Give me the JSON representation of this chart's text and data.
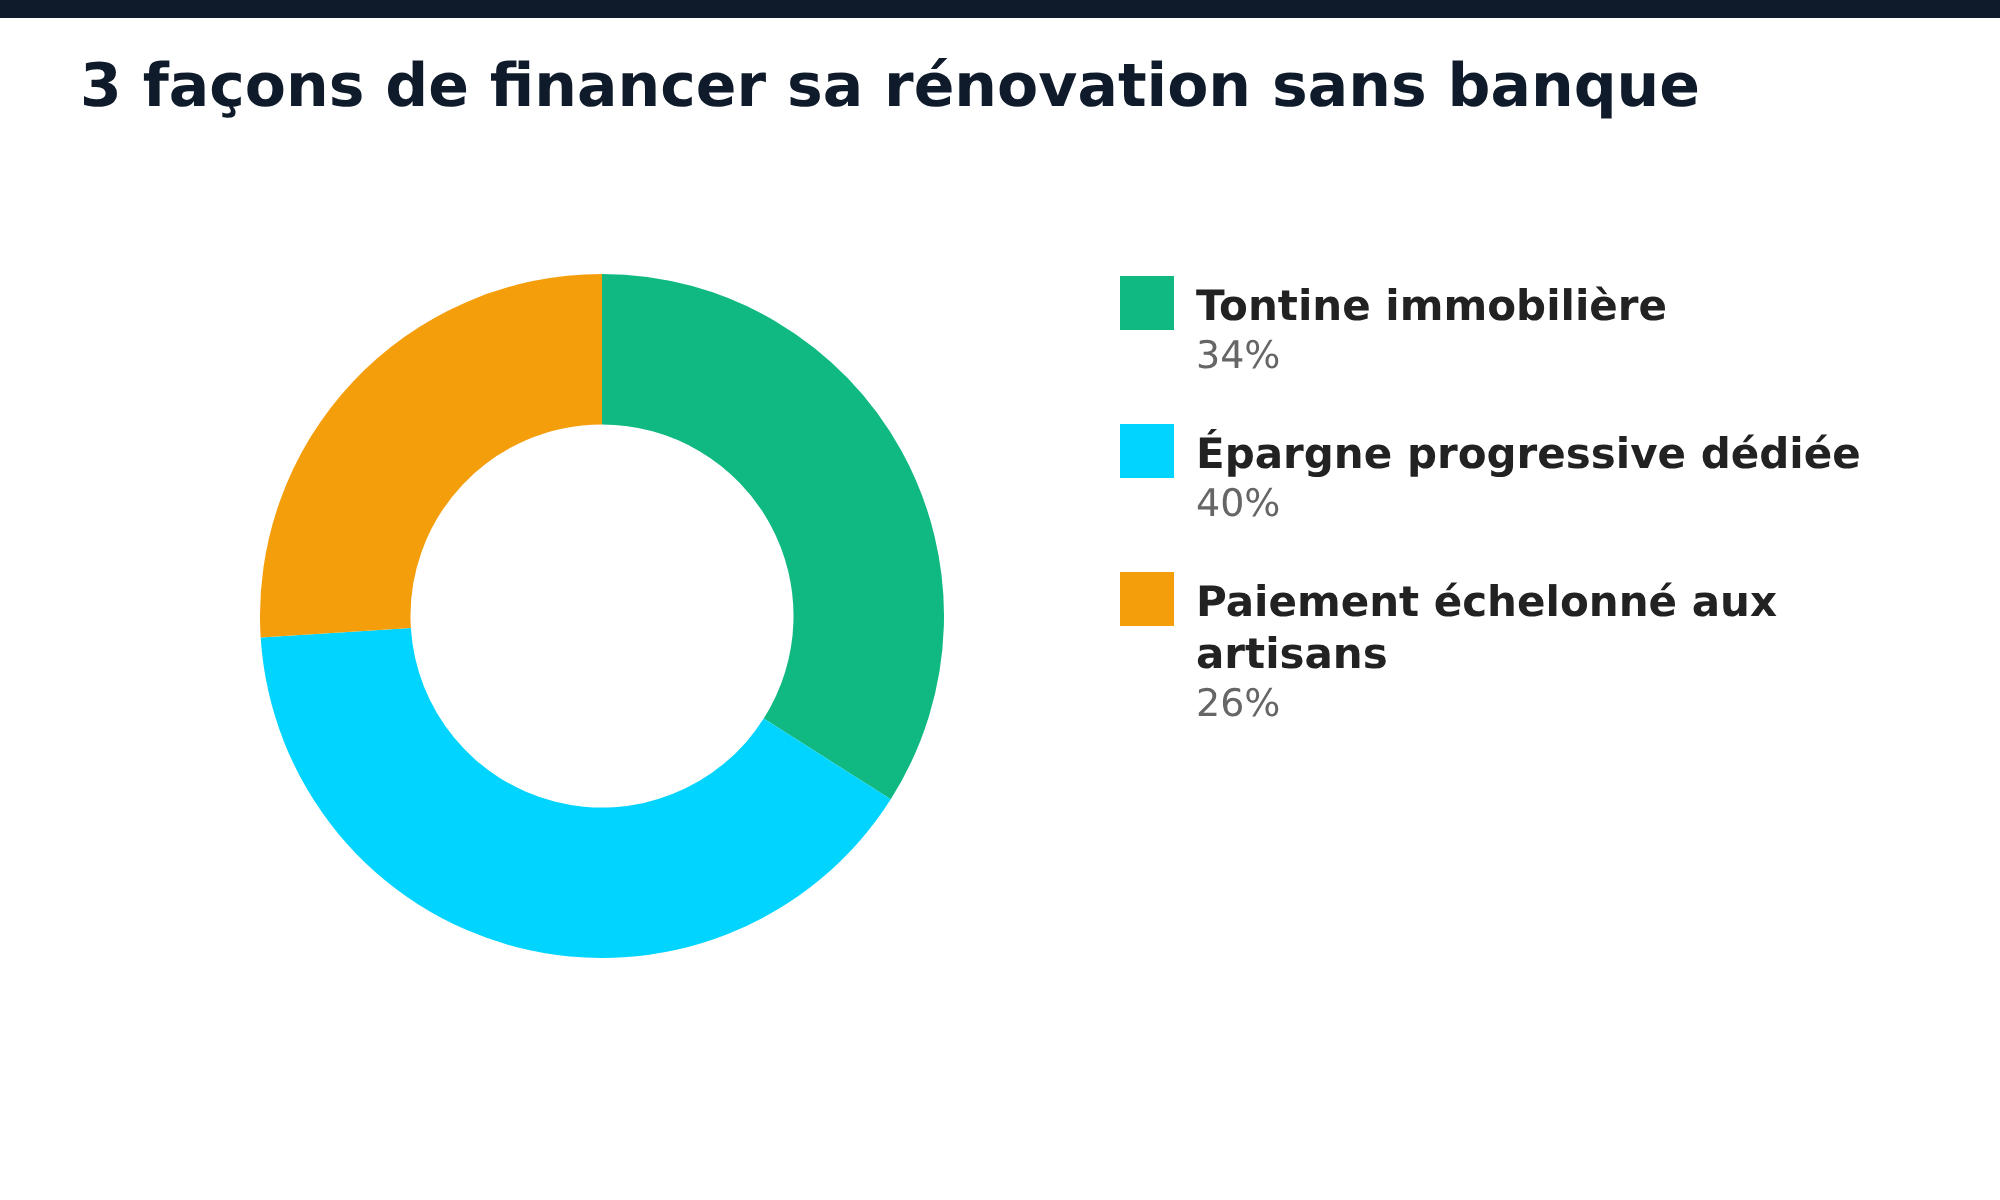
{
  "chart_data": {
    "type": "donut",
    "title": "3 façons de financer sa rénovation sans banque",
    "categories": [
      "Tontine immobilière",
      "Épargne progressive dédiée",
      "Paiement échelonné aux artisans"
    ],
    "values": [
      34,
      40,
      26
    ],
    "colors": [
      "#10b981",
      "#00d4ff",
      "#f59e0b"
    ],
    "value_labels": [
      "34%",
      "40%",
      "26%"
    ],
    "legend": "right"
  }
}
